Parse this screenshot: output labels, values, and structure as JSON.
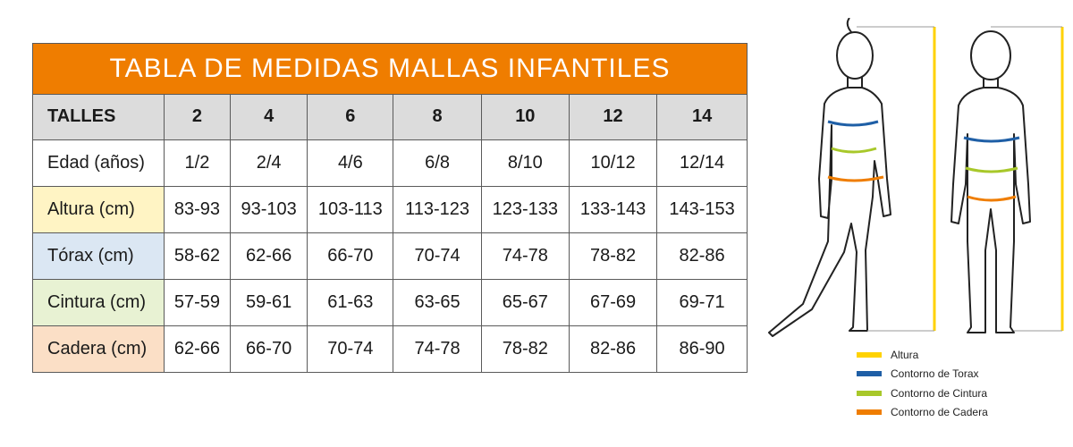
{
  "title": "TABLA DE MEDIDAS MALLAS INFANTILES",
  "header": {
    "label": "TALLES",
    "sizes": [
      "2",
      "4",
      "6",
      "8",
      "10",
      "12",
      "14"
    ]
  },
  "rows": [
    {
      "label": "Edad (años)",
      "values": [
        "1/2",
        "2/4",
        "4/6",
        "6/8",
        "8/10",
        "10/12",
        "12/14"
      ]
    },
    {
      "label": "Altura (cm)",
      "values": [
        "83-93",
        "93-103",
        "103-113",
        "113-123",
        "123-133",
        "133-143",
        "143-153"
      ]
    },
    {
      "label": "Tórax (cm)",
      "values": [
        "58-62",
        "62-66",
        "66-70",
        "70-74",
        "74-78",
        "78-82",
        "82-86"
      ]
    },
    {
      "label": "Cintura (cm)",
      "values": [
        "57-59",
        "59-61",
        "61-63",
        "63-65",
        "65-67",
        "67-69",
        "69-71"
      ]
    },
    {
      "label": "Cadera (cm)",
      "values": [
        "62-66",
        "66-70",
        "70-74",
        "74-78",
        "78-82",
        "82-86",
        "86-90"
      ]
    }
  ],
  "legend": [
    {
      "label": "Altura",
      "color": "#ffd200"
    },
    {
      "label": "Contorno de Torax",
      "color": "#1f5fa6"
    },
    {
      "label": "Contorno de Cintura",
      "color": "#a8c82a"
    },
    {
      "label": "Contorno de Cadera",
      "color": "#ef7d00"
    }
  ],
  "colors": {
    "title_bg": "#ef7d00",
    "header_bg": "#dcdcdc",
    "altura_bg": "#fff4c4",
    "torax_bg": "#dbe7f3",
    "cintura_bg": "#e8f2d3",
    "cadera_bg": "#fbdfc6"
  }
}
